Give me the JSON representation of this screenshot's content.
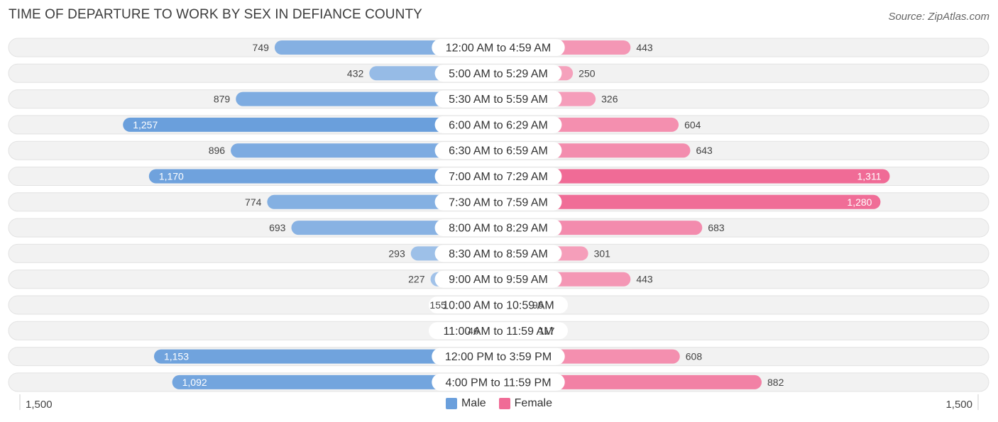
{
  "title": "TIME OF DEPARTURE TO WORK BY SEX IN DEFIANCE COUNTY",
  "source": "Source: ZipAtlas.com",
  "colors": {
    "male": "#6a9fdc",
    "female": "#f06b96",
    "row_bg": "#efefef"
  },
  "legend": {
    "male_label": "Male",
    "female_label": "Female"
  },
  "chart_data": {
    "type": "bar",
    "orientation": "horizontal-diverging",
    "title": "TIME OF DEPARTURE TO WORK BY SEX IN DEFIANCE COUNTY",
    "xlim": [
      -1500,
      1500
    ],
    "axis_tick_labels": {
      "left": "1,500",
      "right": "1,500"
    },
    "legend_position": "bottom-center",
    "categories": [
      "12:00 AM to 4:59 AM",
      "5:00 AM to 5:29 AM",
      "5:30 AM to 5:59 AM",
      "6:00 AM to 6:29 AM",
      "6:30 AM to 6:59 AM",
      "7:00 AM to 7:29 AM",
      "7:30 AM to 7:59 AM",
      "8:00 AM to 8:29 AM",
      "8:30 AM to 8:59 AM",
      "9:00 AM to 9:59 AM",
      "10:00 AM to 10:59 AM",
      "11:00 AM to 11:59 AM",
      "12:00 PM to 3:59 PM",
      "4:00 PM to 11:59 PM"
    ],
    "series": [
      {
        "name": "Male",
        "values": [
          749,
          432,
          879,
          1257,
          896,
          1170,
          774,
          693,
          293,
          227,
          155,
          46,
          1153,
          1092
        ]
      },
      {
        "name": "Female",
        "values": [
          443,
          250,
          326,
          604,
          643,
          1311,
          1280,
          683,
          301,
          443,
          95,
          117,
          608,
          882
        ]
      }
    ]
  }
}
